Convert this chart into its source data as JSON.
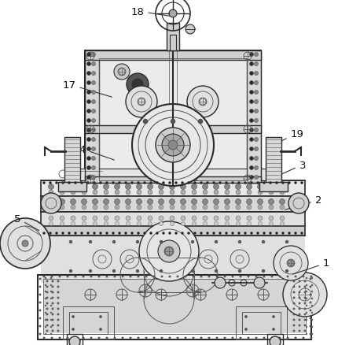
{
  "bg_color": "#ffffff",
  "lc_dark": "#2a2a2a",
  "lc_med": "#555555",
  "lc_light": "#888888",
  "lc_gray": "#aaaaaa",
  "hatching": "#bbbbbb"
}
